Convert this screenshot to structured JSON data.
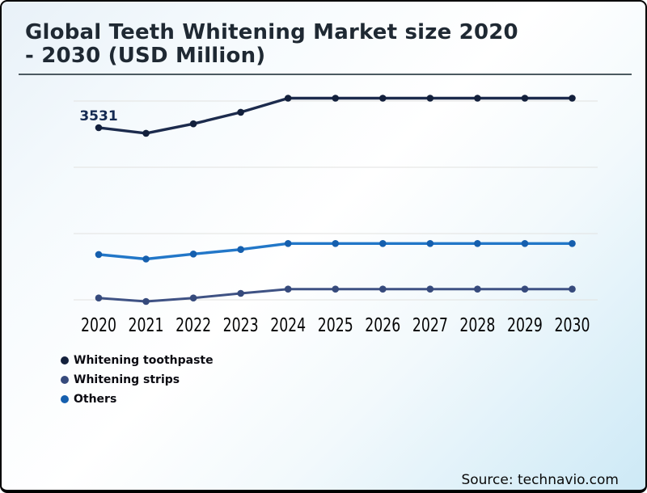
{
  "header": {
    "title_lines": [
      "Global Teeth Whitening Market size 2020",
      "- 2030 (USD Million)"
    ]
  },
  "footer": {
    "source": "Source: technavio.com"
  },
  "chart_data": {
    "type": "line",
    "title": "Global Teeth Whitening Market size 2020 - 2030 (USD Million)",
    "x": [
      2020,
      2021,
      2022,
      2023,
      2024,
      2025,
      2026,
      2027,
      2028,
      2029,
      2030
    ],
    "series": [
      {
        "name": "Whitening toothpaste",
        "line_color": "#1c2b4d",
        "marker_color": "#13203c",
        "line_width": 3.4,
        "values": [
          3531,
          3446,
          3590,
          3765,
          3978,
          3978,
          3978,
          3978,
          3978,
          3978,
          3978
        ]
      },
      {
        "name": "Whitening strips",
        "line_color": "#3f5284",
        "marker_color": "#364a7c",
        "line_width": 3.0,
        "values": [
          952,
          900,
          952,
          1022,
          1087,
          1087,
          1087,
          1087,
          1087,
          1087,
          1087
        ]
      },
      {
        "name": "Others",
        "line_color": "#2277c8",
        "marker_color": "#155fae",
        "line_width": 3.4,
        "values": [
          1610,
          1542,
          1618,
          1686,
          1777,
          1777,
          1777,
          1777,
          1777,
          1777,
          1777
        ]
      }
    ],
    "annotations": [
      {
        "text": "3531",
        "series_index": 0,
        "x": 2020,
        "color": "#142a52"
      }
    ],
    "axes": {
      "xlabel": "",
      "ylabel": "",
      "y_axis_labels_visible": false,
      "estimated_gridline_values": [
        4000,
        3000,
        2000,
        1000
      ]
    },
    "grid": "horizontal-only",
    "legend_position": "bottom-left"
  }
}
